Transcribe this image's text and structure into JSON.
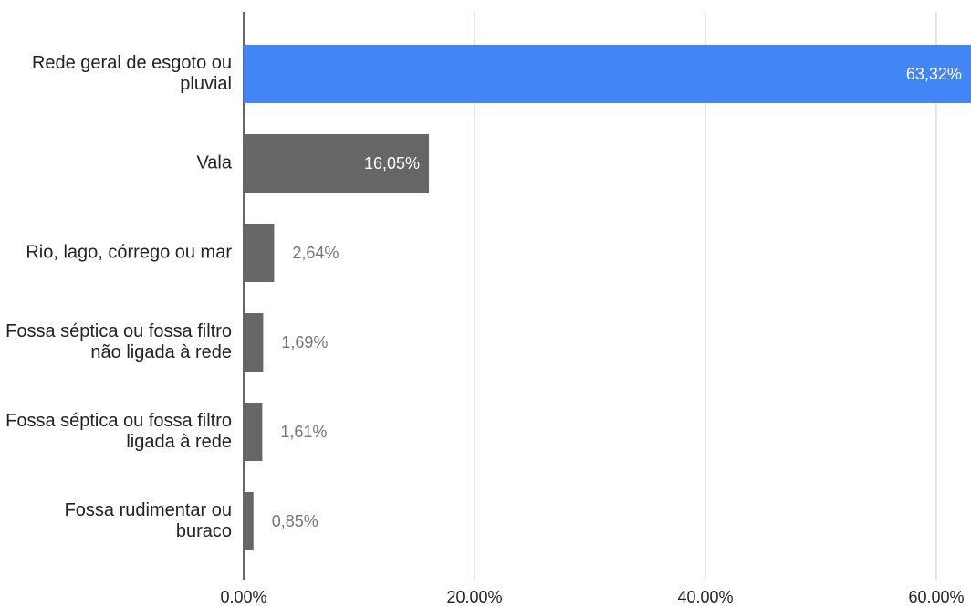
{
  "chart_data": {
    "type": "bar",
    "orientation": "horizontal",
    "categories": [
      "Rede geral de esgoto ou pluvial",
      "Vala",
      "Rio, lago, córrego ou mar",
      "Fossa séptica ou fossa filtro não ligada à rede",
      "Fossa séptica ou fossa filtro ligada à rede",
      "Fossa rudimentar ou buraco"
    ],
    "values": [
      63.32,
      16.05,
      2.64,
      1.69,
      1.61,
      0.85
    ],
    "value_labels": [
      "63,32%",
      "16,05%",
      "2,64%",
      "1,69%",
      "1,61%",
      "0,85%"
    ],
    "colors": [
      "#4285f4",
      "#666666",
      "#666666",
      "#666666",
      "#666666",
      "#666666"
    ],
    "xlim": [
      0,
      63
    ],
    "xticks": [
      {
        "value": 0,
        "label": "0.00%"
      },
      {
        "value": 20,
        "label": "20.00%"
      },
      {
        "value": 40,
        "label": "40.00%"
      },
      {
        "value": 60,
        "label": "60.00%"
      }
    ],
    "grid": true
  }
}
